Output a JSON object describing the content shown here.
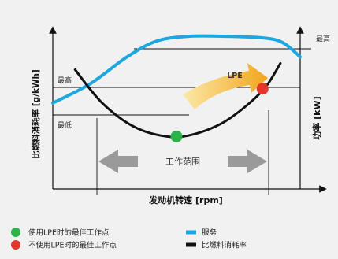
{
  "chart_data": {
    "type": "line",
    "xlabel": "发动机转速 [rpm]",
    "ylabel_left": "比燃料消耗率 [g/kWh]",
    "ylabel_right": "功率 [kW]",
    "left_ticks": {
      "high": "最高",
      "low": "最低"
    },
    "right_tick_high": "最高",
    "annotation_lpe": "LPE",
    "operating_range_label": "工作范围",
    "series": [
      {
        "name": "服务",
        "color": "#1ea7df",
        "x": [
          0,
          0.15,
          0.3,
          0.42,
          0.55,
          0.7,
          0.85,
          0.93,
          1.0
        ],
        "y": [
          0.54,
          0.66,
          0.83,
          0.93,
          0.96,
          0.96,
          0.95,
          0.92,
          0.83
        ]
      },
      {
        "name": "比燃料消耗率",
        "color": "#111111",
        "x": [
          0.09,
          0.2,
          0.33,
          0.46,
          0.56,
          0.68,
          0.78,
          0.86,
          0.92
        ],
        "y": [
          0.75,
          0.54,
          0.39,
          0.33,
          0.34,
          0.41,
          0.52,
          0.64,
          0.79
        ]
      }
    ],
    "points": [
      {
        "label": "使用LPE时的最佳工作点",
        "color": "#2eb34a",
        "x": 0.5,
        "y": 0.33
      },
      {
        "label": "不使用LPE时的最佳工作点",
        "color": "#e5362b",
        "x": 0.848,
        "y": 0.63
      }
    ],
    "xlim": [
      0,
      1
    ],
    "ylim": [
      0,
      1
    ],
    "grid": false
  },
  "legend": {
    "items": [
      {
        "label": "使用LPE时的最佳工作点",
        "color": "#2eb34a",
        "kind": "dot"
      },
      {
        "label": "不使用LPE时的最佳工作点",
        "color": "#e5362b",
        "kind": "dot"
      },
      {
        "label": "服务",
        "color": "#1ea7df",
        "kind": "bar"
      },
      {
        "label": "比燃料消耗率",
        "color": "#111111",
        "kind": "bar"
      }
    ]
  }
}
